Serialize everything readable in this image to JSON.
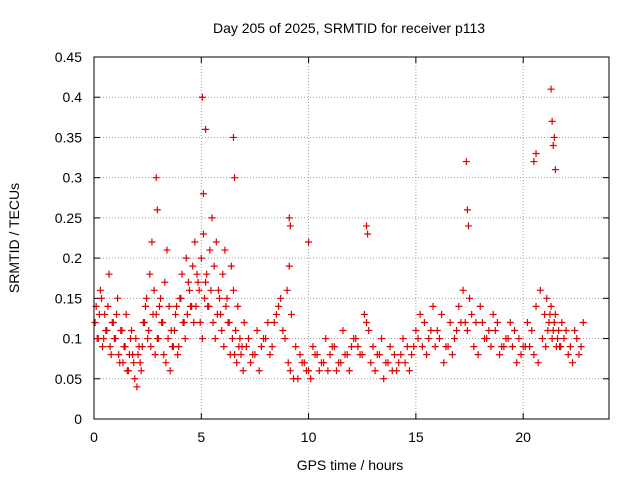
{
  "chart_data": {
    "type": "scatter",
    "title": "Day 205 of 2025, SRMTID for receiver p113",
    "xlabel": "GPS time / hours",
    "ylabel": "SRMTID / TECUs",
    "xlim": [
      0,
      24
    ],
    "ylim": [
      0,
      0.45
    ],
    "xticks": [
      0,
      5,
      10,
      15,
      20
    ],
    "xtick_labels": [
      "0",
      "5",
      "10",
      "15",
      "20"
    ],
    "yticks": [
      0,
      0.05,
      0.1,
      0.15,
      0.2,
      0.25,
      0.3,
      0.35,
      0.4,
      0.45
    ],
    "ytick_labels": [
      "0",
      "0.05",
      "0.1",
      "0.15",
      "0.2",
      "0.25",
      "0.3",
      "0.35",
      "0.4",
      "0.45"
    ],
    "grid": true,
    "marker": "+",
    "color": "#e00000",
    "series": [
      {
        "name": "SRMTID",
        "x": [
          0.05,
          0.1,
          0.2,
          0.3,
          0.4,
          0.5,
          0.6,
          0.7,
          0.8,
          0.9,
          1.0,
          1.1,
          1.2,
          1.3,
          1.4,
          1.5,
          1.6,
          1.7,
          1.8,
          1.9,
          2.0,
          2.1,
          2.2,
          2.3,
          2.4,
          2.5,
          2.6,
          2.7,
          2.8,
          2.9,
          3.0,
          3.1,
          3.2,
          3.3,
          3.4,
          3.5,
          3.6,
          3.7,
          3.8,
          3.9,
          4.0,
          4.1,
          4.2,
          4.3,
          4.4,
          4.5,
          4.6,
          4.7,
          4.8,
          4.9,
          5.0,
          5.1,
          5.2,
          5.3,
          5.4,
          5.5,
          5.6,
          5.7,
          5.8,
          5.9,
          6.0,
          6.1,
          6.2,
          6.3,
          6.4,
          6.5,
          6.6,
          6.7,
          6.8,
          6.9,
          7.0,
          7.2,
          7.4,
          7.6,
          7.8,
          8.0,
          8.2,
          8.4,
          8.6,
          8.8,
          9.0,
          9.1,
          9.2,
          9.4,
          9.6,
          9.8,
          10.0,
          10.2,
          10.4,
          10.6,
          10.8,
          11.0,
          11.2,
          11.4,
          11.6,
          11.8,
          12.0,
          12.2,
          12.4,
          12.6,
          12.7,
          12.8,
          13.0,
          13.2,
          13.4,
          13.6,
          13.8,
          14.0,
          14.2,
          14.4,
          14.6,
          14.8,
          15.0,
          15.2,
          15.4,
          15.6,
          15.8,
          16.0,
          16.2,
          16.4,
          16.6,
          16.8,
          17.0,
          17.2,
          17.3,
          17.4,
          17.5,
          17.6,
          17.8,
          18.0,
          18.2,
          18.4,
          18.6,
          18.8,
          19.0,
          19.2,
          19.4,
          19.6,
          19.8,
          20.0,
          20.2,
          20.4,
          20.6,
          20.8,
          21.0,
          21.1,
          21.2,
          21.3,
          21.4,
          21.5,
          21.6,
          21.7,
          21.8,
          22.0,
          22.2,
          22.4,
          22.6,
          22.8,
          0.15,
          0.25,
          0.35,
          0.45,
          0.55,
          0.65,
          0.75,
          0.85,
          0.95,
          1.05,
          1.15,
          1.25,
          1.35,
          1.45,
          1.55,
          1.65,
          1.75,
          1.85,
          1.95,
          2.05,
          2.15,
          2.25,
          2.35,
          2.45,
          2.55,
          2.65,
          2.75,
          2.85,
          2.95,
          3.05,
          3.15,
          3.25,
          3.35,
          3.45,
          3.55,
          3.65,
          3.75,
          3.85,
          3.95,
          4.05,
          4.15,
          4.25,
          4.35,
          4.45,
          4.55,
          4.65,
          4.75,
          4.85,
          4.95,
          5.05,
          5.15,
          5.25,
          5.35,
          5.45,
          5.55,
          5.65,
          5.75,
          5.85,
          5.95,
          6.05,
          6.15,
          6.25,
          6.35,
          6.45,
          6.55,
          6.65,
          6.75,
          6.85,
          6.95,
          7.1,
          7.3,
          7.5,
          7.7,
          7.9,
          8.1,
          8.3,
          8.5,
          8.7,
          8.9,
          9.05,
          9.15,
          9.3,
          9.5,
          9.7,
          9.9,
          10.1,
          10.3,
          10.5,
          10.7,
          10.9,
          11.1,
          11.3,
          11.5,
          11.7,
          11.9,
          12.1,
          12.3,
          12.5,
          12.9,
          13.1,
          13.3,
          13.5,
          13.7,
          13.9,
          14.1,
          14.3,
          14.5,
          14.7,
          14.9,
          15.1,
          15.3,
          15.5,
          15.7,
          15.9,
          16.1,
          16.3,
          16.5,
          16.7,
          16.9,
          17.1,
          17.7,
          17.9,
          18.1,
          18.3,
          18.5,
          18.7,
          18.9,
          19.1,
          19.3,
          19.5,
          19.7,
          19.9,
          20.1,
          20.3,
          20.5,
          20.7,
          20.9,
          21.05,
          21.15,
          21.25,
          21.35,
          21.45,
          21.55,
          21.65,
          21.75,
          21.9,
          22.1,
          22.3,
          22.5,
          22.7,
          2.9,
          2.95,
          5.05,
          5.1,
          5.2,
          6.5,
          6.55,
          9.1,
          9.15,
          10.0,
          12.7,
          12.75,
          17.35,
          17.4,
          17.45,
          20.5,
          20.6,
          21.3,
          21.35,
          21.4,
          21.45,
          21.5
        ],
        "y": [
          0.12,
          0.14,
          0.1,
          0.16,
          0.09,
          0.13,
          0.11,
          0.18,
          0.08,
          0.12,
          0.1,
          0.15,
          0.07,
          0.11,
          0.09,
          0.13,
          0.06,
          0.1,
          0.08,
          0.05,
          0.04,
          0.09,
          0.06,
          0.12,
          0.14,
          0.1,
          0.18,
          0.22,
          0.16,
          0.13,
          0.1,
          0.15,
          0.12,
          0.17,
          0.21,
          0.14,
          0.11,
          0.09,
          0.13,
          0.08,
          0.15,
          0.18,
          0.12,
          0.2,
          0.17,
          0.14,
          0.19,
          0.22,
          0.18,
          0.16,
          0.2,
          0.23,
          0.17,
          0.14,
          0.21,
          0.25,
          0.19,
          0.22,
          0.16,
          0.13,
          0.18,
          0.21,
          0.15,
          0.12,
          0.19,
          0.16,
          0.11,
          0.14,
          0.1,
          0.09,
          0.12,
          0.1,
          0.08,
          0.11,
          0.09,
          0.1,
          0.08,
          0.12,
          0.14,
          0.11,
          0.16,
          0.19,
          0.13,
          0.09,
          0.08,
          0.07,
          0.06,
          0.09,
          0.08,
          0.07,
          0.1,
          0.08,
          0.09,
          0.07,
          0.11,
          0.08,
          0.09,
          0.1,
          0.08,
          0.13,
          0.12,
          0.11,
          0.09,
          0.08,
          0.1,
          0.07,
          0.09,
          0.08,
          0.07,
          0.1,
          0.09,
          0.08,
          0.11,
          0.13,
          0.12,
          0.1,
          0.14,
          0.11,
          0.13,
          0.09,
          0.12,
          0.1,
          0.14,
          0.16,
          0.12,
          0.11,
          0.15,
          0.13,
          0.12,
          0.14,
          0.1,
          0.11,
          0.13,
          0.12,
          0.09,
          0.1,
          0.12,
          0.11,
          0.1,
          0.09,
          0.12,
          0.11,
          0.14,
          0.16,
          0.13,
          0.15,
          0.12,
          0.14,
          0.11,
          0.13,
          0.1,
          0.09,
          0.12,
          0.11,
          0.09,
          0.11,
          0.08,
          0.12,
          0.1,
          0.13,
          0.15,
          0.1,
          0.11,
          0.14,
          0.09,
          0.12,
          0.1,
          0.13,
          0.08,
          0.11,
          0.07,
          0.09,
          0.06,
          0.08,
          0.11,
          0.07,
          0.1,
          0.08,
          0.07,
          0.09,
          0.12,
          0.15,
          0.11,
          0.09,
          0.13,
          0.08,
          0.1,
          0.14,
          0.12,
          0.08,
          0.07,
          0.1,
          0.06,
          0.09,
          0.11,
          0.14,
          0.09,
          0.15,
          0.12,
          0.1,
          0.13,
          0.16,
          0.14,
          0.12,
          0.14,
          0.17,
          0.12,
          0.1,
          0.15,
          0.18,
          0.14,
          0.16,
          0.12,
          0.1,
          0.13,
          0.15,
          0.11,
          0.09,
          0.14,
          0.12,
          0.08,
          0.1,
          0.08,
          0.07,
          0.09,
          0.08,
          0.06,
          0.09,
          0.07,
          0.08,
          0.06,
          0.1,
          0.12,
          0.09,
          0.13,
          0.15,
          0.1,
          0.07,
          0.06,
          0.05,
          0.05,
          0.07,
          0.06,
          0.05,
          0.08,
          0.06,
          0.07,
          0.06,
          0.09,
          0.06,
          0.07,
          0.08,
          0.06,
          0.1,
          0.09,
          0.08,
          0.07,
          0.06,
          0.08,
          0.05,
          0.07,
          0.06,
          0.06,
          0.08,
          0.07,
          0.06,
          0.09,
          0.1,
          0.09,
          0.08,
          0.11,
          0.09,
          0.1,
          0.07,
          0.09,
          0.08,
          0.11,
          0.12,
          0.09,
          0.08,
          0.12,
          0.1,
          0.09,
          0.11,
          0.08,
          0.09,
          0.1,
          0.09,
          0.07,
          0.08,
          0.09,
          0.09,
          0.08,
          0.07,
          0.1,
          0.09,
          0.11,
          0.13,
          0.1,
          0.12,
          0.09,
          0.11,
          0.09,
          0.1,
          0.08,
          0.07,
          0.1,
          0.09,
          0.3,
          0.26,
          0.4,
          0.28,
          0.36,
          0.35,
          0.3,
          0.25,
          0.24,
          0.22,
          0.24,
          0.23,
          0.32,
          0.26,
          0.24,
          0.32,
          0.33,
          0.41,
          0.37,
          0.34,
          0.35,
          0.31
        ]
      }
    ]
  }
}
